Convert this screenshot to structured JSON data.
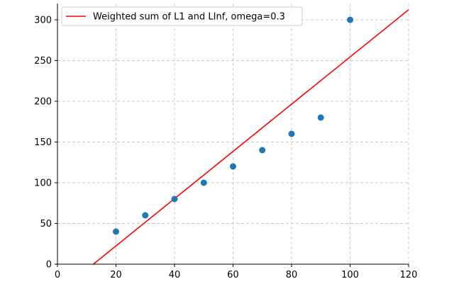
{
  "chart_data": {
    "type": "scatter",
    "xlim": [
      0,
      120
    ],
    "ylim": [
      0,
      320
    ],
    "xticks": [
      0,
      20,
      40,
      60,
      80,
      100,
      120
    ],
    "yticks": [
      0,
      50,
      100,
      150,
      200,
      250,
      300
    ],
    "grid": true,
    "legend_position": "top-left",
    "points": {
      "x": [
        20,
        30,
        40,
        50,
        60,
        70,
        80,
        90,
        100
      ],
      "y": [
        40,
        60,
        80,
        100,
        120,
        140,
        160,
        180,
        300
      ],
      "color": "#1f77b4"
    },
    "fit_line": {
      "name": "Weighted sum of L1 and LInf, omega=0.3",
      "slope": 2.9,
      "intercept": -35.6,
      "color": "#ff0000"
    }
  }
}
